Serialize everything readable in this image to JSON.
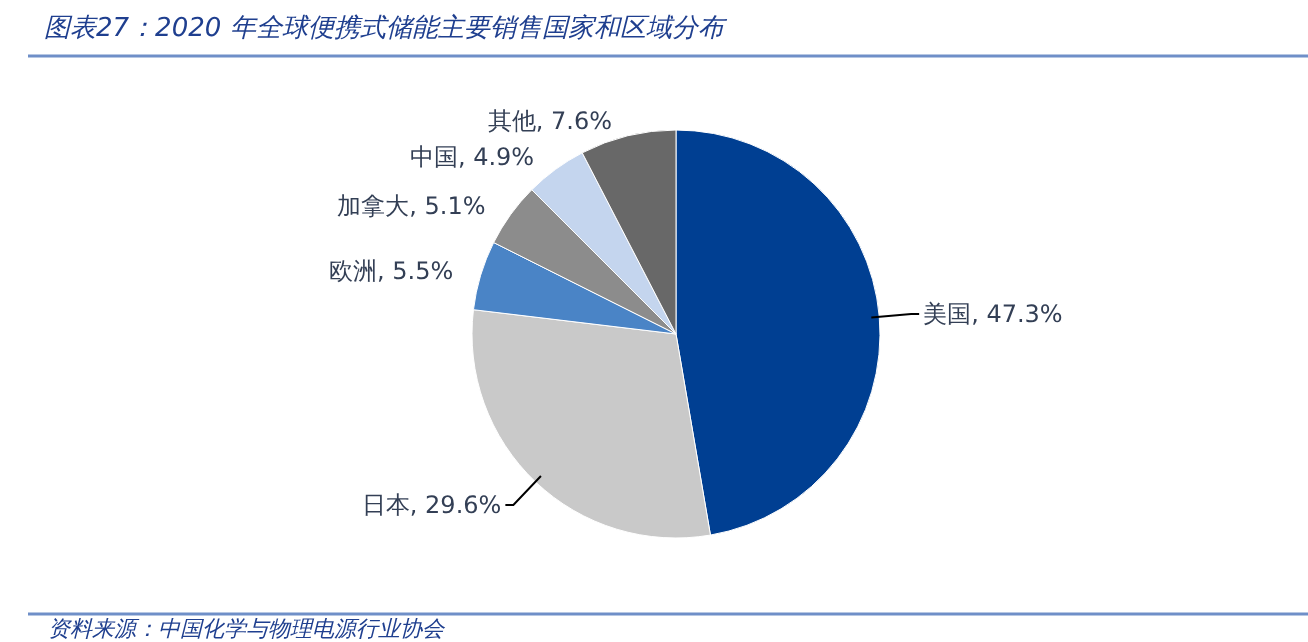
{
  "chart_data": {
    "type": "pie",
    "title": "图表27：2020 年全球便携式储能主要销售国家和区域分布",
    "categories": [
      "美国",
      "日本",
      "欧洲",
      "加拿大",
      "中国",
      "其他"
    ],
    "values": [
      47.3,
      29.6,
      5.5,
      5.1,
      4.9,
      7.6
    ],
    "colors": [
      "#003f92",
      "#c9c9c9",
      "#4a84c6",
      "#8c8c8c",
      "#c4d5ee",
      "#686868"
    ],
    "value_labels": [
      ", 47.3%",
      ", 29.6%",
      ", 5.5%",
      ", 5.1%",
      ", 4.9%",
      ", 7.6%"
    ],
    "annotations": [
      "资料来源：中国化学与物理电源行业协会"
    ]
  }
}
